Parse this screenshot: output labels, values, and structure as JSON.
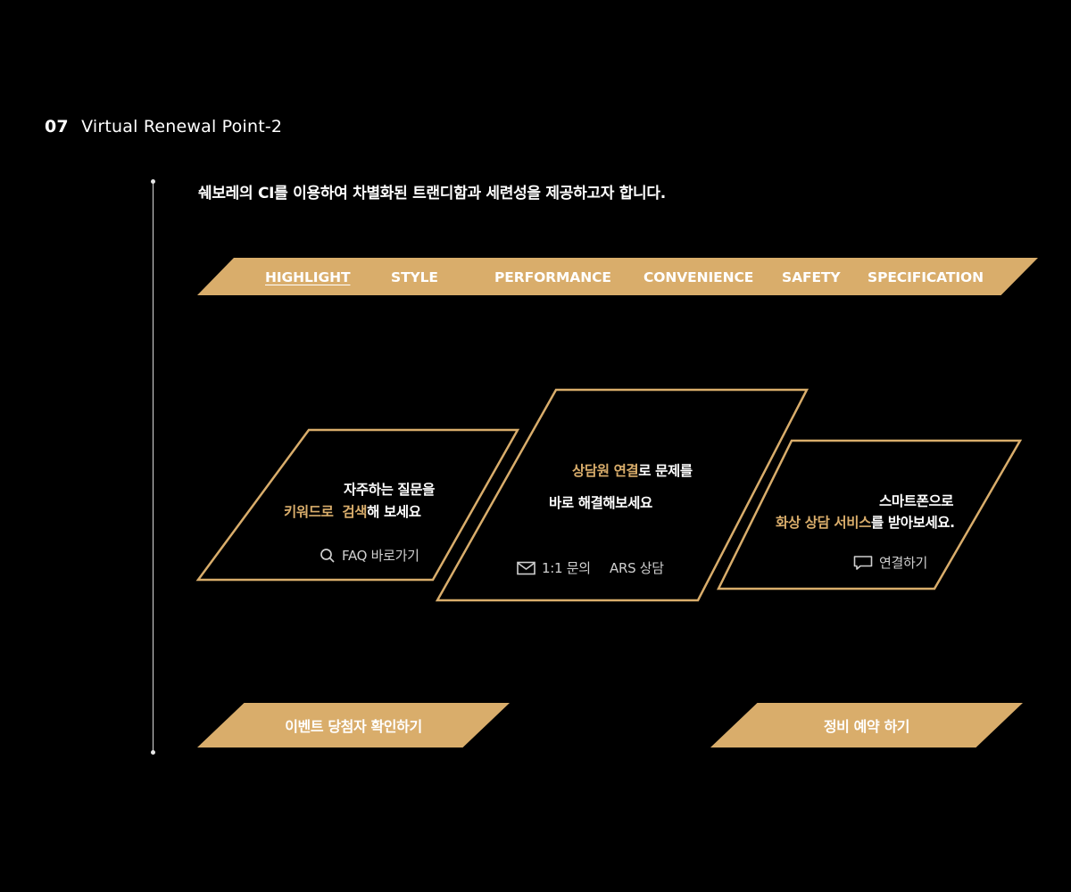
{
  "section": {
    "number": "07",
    "title": "Virtual Renewal Point-2"
  },
  "intro": "쉐보레의 CI를 이용하여 차별화된 트랜디함과 세련성을 제공하고자 합니다.",
  "nav": {
    "items": [
      {
        "label": "HIGHLIGHT",
        "active": true
      },
      {
        "label": "STYLE",
        "active": false
      },
      {
        "label": "PERFORMANCE",
        "active": false
      },
      {
        "label": "CONVENIENCE",
        "active": false
      },
      {
        "label": "SAFETY",
        "active": false
      },
      {
        "label": "SPECIFICATION",
        "active": false
      }
    ]
  },
  "cards": {
    "faq": {
      "line1": "자주하는 질문을",
      "line2_gold": "키워드로  검색",
      "line2_rest": "해 보세요",
      "link_label": "FAQ 바로가기",
      "link_icon": "search-icon"
    },
    "counsel": {
      "line1_gold": "상담원 연결",
      "line1_rest": "로 문제를",
      "line2": "바로 해결해보세요",
      "link1_label": "1:1 문의",
      "link1_icon": "mail-icon",
      "link2_label": "ARS 상담"
    },
    "video": {
      "line1": "스마트폰으로",
      "line2_gold": "화상 상담 서비스",
      "line2_rest": "를 받아보세요.",
      "link_label": "연결하기",
      "link_icon": "chat-icon"
    }
  },
  "buttons": {
    "event": "이벤트 당첨자 확인하기",
    "service": "정비 예약 하기"
  },
  "colors": {
    "accent": "#d9ad6b",
    "background": "#000000",
    "text": "#ffffff"
  }
}
